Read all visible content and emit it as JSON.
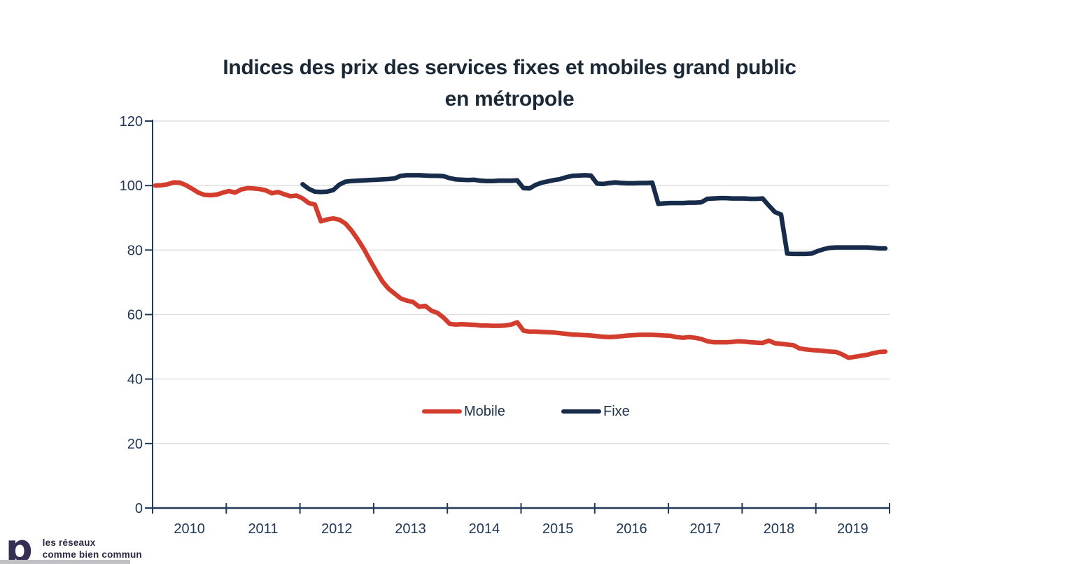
{
  "title": {
    "line1": "Indices des prix des services fixes et mobiles grand public",
    "line2": "en métropole"
  },
  "legend": [
    {
      "label": "Mobile",
      "color": "#d23d2d"
    },
    {
      "label": "Fixe",
      "color": "#172c4b"
    }
  ],
  "logo": {
    "glyph": "p",
    "line1": "les réseaux",
    "line2": "comme bien commun"
  },
  "colors": {
    "mobile_line": "#d23d2d",
    "fixe_line": "#172c4b",
    "axis": "#24395a",
    "gridline": "#e1e1e1",
    "tick_label": "#1e3553",
    "title_text": "#1b2836"
  },
  "chart_data": {
    "type": "line",
    "title": "Indices des prix des services fixes et mobiles grand public en métropole",
    "xlabel": "",
    "ylabel": "",
    "ylim": [
      0,
      120
    ],
    "y_ticks": [
      0,
      20,
      40,
      60,
      80,
      100,
      120
    ],
    "x_tick_labels": [
      "2010",
      "2011",
      "2012",
      "2013",
      "2014",
      "2015",
      "2016",
      "2017",
      "2018",
      "2019"
    ],
    "x_unit": "monthly, Jan 2010 - Dec 2019",
    "grid": "horizontal only",
    "legend_position": "inside center",
    "series": [
      {
        "name": "Mobile",
        "color": "#d23d2d",
        "start": "2010-01",
        "values": [
          100.0,
          100.1,
          100.4,
          101.0,
          100.9,
          100.1,
          99.0,
          97.8,
          97.1,
          97.0,
          97.2,
          97.8,
          98.3,
          97.8,
          98.8,
          99.2,
          99.1,
          98.9,
          98.5,
          97.6,
          98.0,
          97.3,
          96.7,
          96.9,
          96.0,
          94.6,
          94.1,
          88.9,
          89.5,
          89.8,
          89.4,
          88.2,
          86.0,
          83.3,
          80.3,
          76.8,
          73.5,
          70.3,
          68.0,
          66.5,
          65.0,
          64.3,
          63.9,
          62.4,
          62.7,
          61.2,
          60.5,
          59.0,
          57.1,
          56.9,
          57.0,
          56.9,
          56.8,
          56.6,
          56.6,
          56.5,
          56.5,
          56.6,
          56.9,
          57.6,
          55.0,
          54.7,
          54.7,
          54.6,
          54.5,
          54.4,
          54.2,
          54.0,
          53.8,
          53.7,
          53.6,
          53.5,
          53.3,
          53.1,
          53.0,
          53.1,
          53.3,
          53.5,
          53.6,
          53.7,
          53.7,
          53.7,
          53.6,
          53.5,
          53.4,
          53.0,
          52.8,
          53.0,
          52.8,
          52.4,
          51.7,
          51.4,
          51.4,
          51.4,
          51.5,
          51.7,
          51.6,
          51.4,
          51.3,
          51.2,
          51.9,
          51.1,
          50.9,
          50.7,
          50.5,
          49.5,
          49.2,
          49.0,
          48.9,
          48.7,
          48.5,
          48.4,
          47.6,
          46.6,
          46.9,
          47.2,
          47.5,
          48.0,
          48.4,
          48.5
        ]
      },
      {
        "name": "Fixe",
        "color": "#172c4b",
        "start": "2012-01",
        "values": [
          100.4,
          99.0,
          98.1,
          98.0,
          98.1,
          98.6,
          100.3,
          101.2,
          101.4,
          101.5,
          101.6,
          101.7,
          101.8,
          101.9,
          102.0,
          102.2,
          103.0,
          103.2,
          103.2,
          103.2,
          103.1,
          103.0,
          103.0,
          102.9,
          102.3,
          101.9,
          101.8,
          101.7,
          101.8,
          101.5,
          101.4,
          101.4,
          101.5,
          101.5,
          101.5,
          101.6,
          99.2,
          99.1,
          100.2,
          100.9,
          101.3,
          101.7,
          102.0,
          102.6,
          103.0,
          103.1,
          103.2,
          103.1,
          100.6,
          100.5,
          100.8,
          101.0,
          100.8,
          100.7,
          100.7,
          100.8,
          100.8,
          100.9,
          94.3,
          94.5,
          94.6,
          94.6,
          94.6,
          94.7,
          94.7,
          94.8,
          95.9,
          96.0,
          96.1,
          96.1,
          96.0,
          96.0,
          96.0,
          95.9,
          95.9,
          96.0,
          93.8,
          91.8,
          91.0,
          78.9,
          78.8,
          78.8,
          78.8,
          78.9,
          79.7,
          80.3,
          80.7,
          80.8,
          80.8,
          80.8,
          80.8,
          80.8,
          80.8,
          80.7,
          80.5,
          80.5
        ]
      }
    ]
  }
}
